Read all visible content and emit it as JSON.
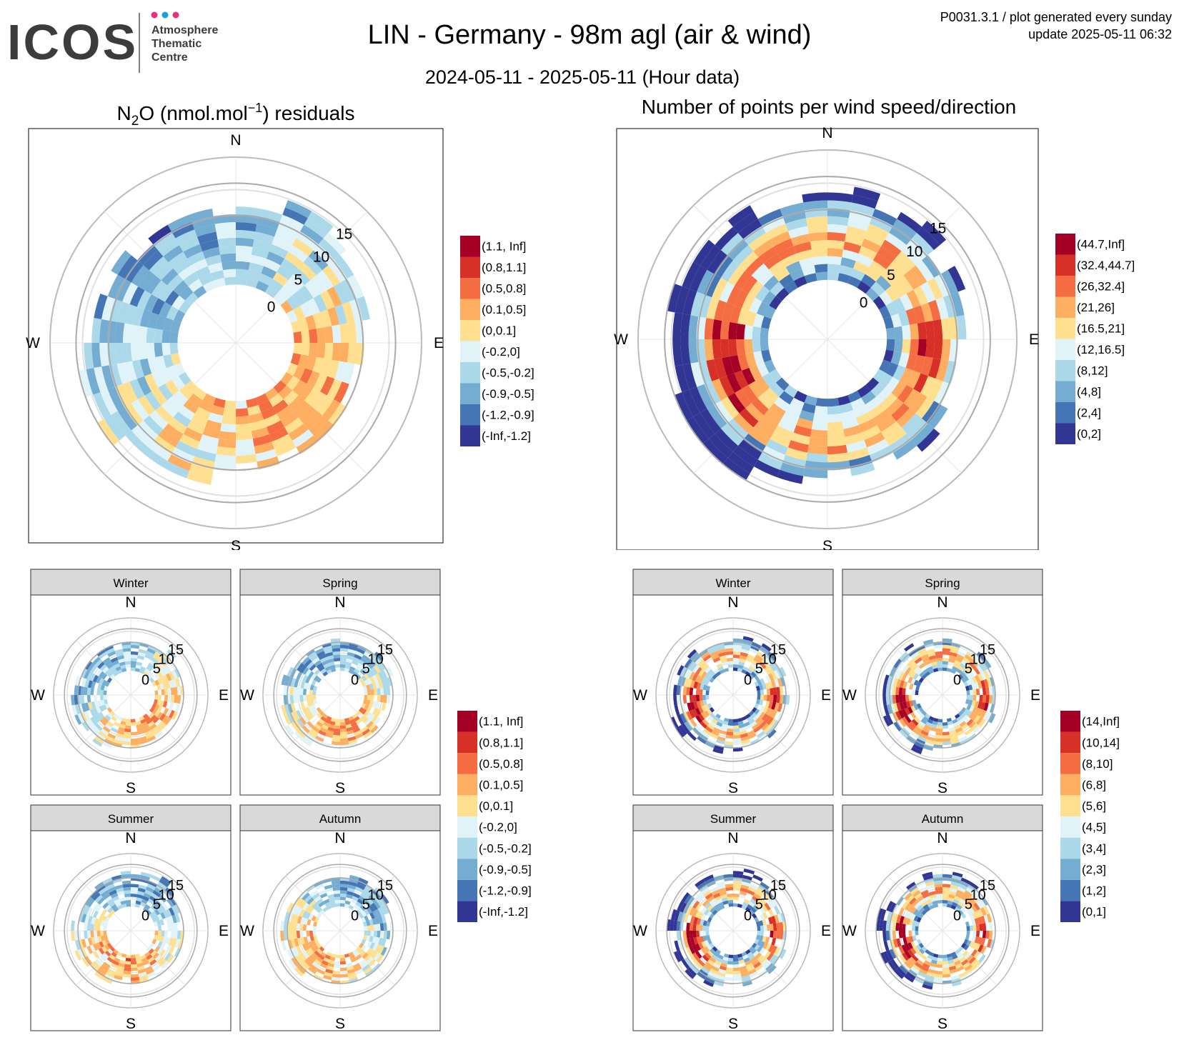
{
  "header": {
    "logo_text": "ICOS",
    "logo_sub": [
      "Atmosphere",
      "Thematic",
      "Centre"
    ],
    "title": "LIN - Germany - 98m agl (air & wind)",
    "subtitle": "2024-05-11 - 2025-05-11 (Hour data)",
    "meta_line1": "P0031.3.1 / plot generated every sunday",
    "meta_line2": "update  2025-05-11 06:32"
  },
  "colors": {
    "scale": [
      "#313695",
      "#4575b4",
      "#74add1",
      "#abd9e9",
      "#e0f3f8",
      "#fee090",
      "#fdae61",
      "#f46d43",
      "#d73027",
      "#a50026"
    ],
    "logo_dots": [
      "#e6317e",
      "#1aa1dc",
      "#e6317e"
    ],
    "logo_text": "#3c3c3c"
  },
  "compass": {
    "n": "N",
    "e": "E",
    "s": "S",
    "w": "W"
  },
  "seasons": [
    "Winter",
    "Spring",
    "Summer",
    "Autumn"
  ],
  "chart_data": [
    {
      "type": "polar-heatmap",
      "title_pre": "N",
      "title_sub": "2",
      "title_mid": "O (nmol.mol",
      "title_sup": "−1",
      "title_post": ") residuals",
      "radial_axis": "wind speed",
      "radial_ticks": [
        "0",
        "5",
        "10",
        "15"
      ],
      "angular_axis": "wind direction",
      "legend_labels": [
        "(-Inf,-1.2]",
        "(-1.2,-0.9]",
        "(-0.9,-0.5]",
        "(-0.5,-0.2]",
        "(-0.2,0]",
        "(0,0.1]",
        "(0.1,0.5]",
        "(0.5,0.8]",
        "(0.8,1.1]",
        "(1.1, Inf]"
      ],
      "pattern": "residuals"
    },
    {
      "type": "polar-heatmap",
      "title": "Number of points per wind speed/direction",
      "radial_axis": "wind speed",
      "radial_ticks": [
        "0",
        "5",
        "10",
        "15"
      ],
      "angular_axis": "wind direction",
      "legend_labels": [
        "(0,2]",
        "(2,4]",
        "(4,8]",
        "(8,12]",
        "(12,16.5]",
        "(16.5,21]",
        "(21,26]",
        "(26,32.4]",
        "(32.4,44.7]",
        "(44.7,Inf]"
      ],
      "pattern": "counts"
    },
    {
      "type": "polar-heatmap",
      "facets": [
        "Winter",
        "Spring",
        "Summer",
        "Autumn"
      ],
      "radial_ticks": [
        "0",
        "5",
        "10",
        "15"
      ],
      "legend_labels": [
        "(-Inf,-1.2]",
        "(-1.2,-0.9]",
        "(-0.9,-0.5]",
        "(-0.5,-0.2]",
        "(-0.2,0]",
        "(0,0.1]",
        "(0.1,0.5]",
        "(0.5,0.8]",
        "(0.8,1.1]",
        "(1.1, Inf]"
      ],
      "pattern": "residuals"
    },
    {
      "type": "polar-heatmap",
      "facets": [
        "Winter",
        "Spring",
        "Summer",
        "Autumn"
      ],
      "radial_ticks": [
        "0",
        "5",
        "10",
        "15"
      ],
      "legend_labels": [
        "(0,1]",
        "(1,2]",
        "(2,3]",
        "(3,4]",
        "(4,5]",
        "(5,6]",
        "(6,8]",
        "(8,10]",
        "(10,14]",
        "(14,Inf]"
      ],
      "pattern": "counts"
    }
  ]
}
